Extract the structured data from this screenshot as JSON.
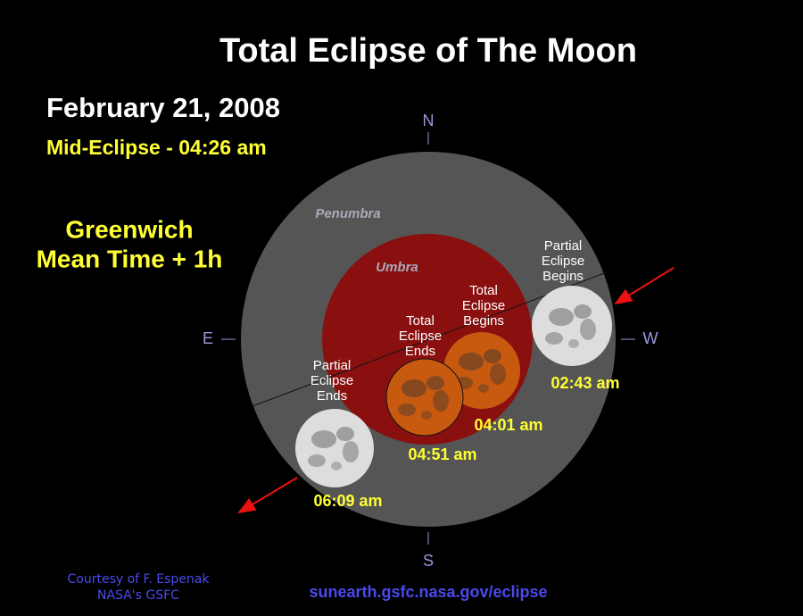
{
  "title": "Total Eclipse of The Moon",
  "date": "February 21, 2008",
  "mid_eclipse": "Mid-Eclipse - 04:26 am",
  "time_zone": [
    "Greenwich",
    "Mean Time + 1h"
  ],
  "compass": {
    "n": "N",
    "s": "S",
    "e": "E",
    "w": "W"
  },
  "regions": {
    "penumbra": "Penumbra",
    "umbra": "Umbra"
  },
  "contacts": [
    {
      "label": [
        "Partial",
        "Eclipse",
        "Begins"
      ],
      "time": "02:43 am"
    },
    {
      "label": [
        "Total",
        "Eclipse",
        "Begins"
      ],
      "time": "04:01 am"
    },
    {
      "label": [
        "Total",
        "Eclipse",
        "Ends"
      ],
      "time": "04:51 am"
    },
    {
      "label": [
        "Partial",
        "Eclipse",
        "Ends"
      ],
      "time": "06:09 am"
    }
  ],
  "credit": [
    "Courtesy of F. Espenak",
    "NASA's GSFC"
  ],
  "url": "sunearth.gsfc.nasa.gov/eclipse"
}
